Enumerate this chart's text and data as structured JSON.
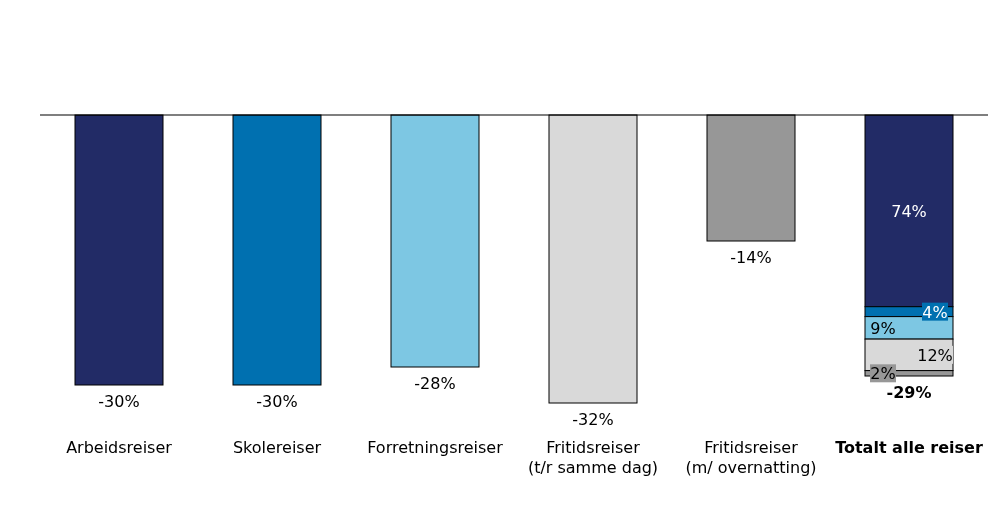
{
  "chart_data": {
    "type": "bar",
    "stacked": true,
    "categories": [
      "Arbeidsreiser",
      "Skolereiser",
      "Forretningsreiser",
      "Fritidsreiser\n(t/r samme dag)",
      "Fritidsreiser\n(m/ overnatting)",
      "Totalt alle reiser"
    ],
    "series": [
      {
        "color": "#222b66",
        "values": [
          -30,
          null,
          null,
          null,
          null,
          -21.3
        ],
        "value_labels": [
          "-30%",
          null,
          null,
          null,
          null,
          null
        ]
      },
      {
        "color": "#0070b0",
        "values": [
          null,
          -30,
          null,
          null,
          null,
          -1.1
        ],
        "value_labels": [
          null,
          "-30%",
          null,
          null,
          null,
          null
        ]
      },
      {
        "color": "#7dc7e3",
        "values": [
          null,
          null,
          -28,
          null,
          null,
          -2.5
        ],
        "value_labels": [
          null,
          null,
          "-28%",
          null,
          null,
          null
        ]
      },
      {
        "color": "#d9d9d9",
        "values": [
          null,
          null,
          null,
          -32,
          null,
          -3.5
        ],
        "value_labels": [
          null,
          null,
          null,
          "-32%",
          null,
          null
        ]
      },
      {
        "color": "#979797",
        "values": [
          null,
          null,
          null,
          null,
          -14,
          -0.6
        ],
        "value_labels": [
          null,
          null,
          null,
          null,
          "-14%",
          null
        ]
      }
    ],
    "totals": [
      null,
      null,
      null,
      null,
      null,
      "-29%"
    ],
    "annotations": [
      "74%",
      "4%",
      "9%",
      "12%",
      "2%"
    ],
    "tick_labels": "x",
    "grid": false,
    "legend": false
  }
}
